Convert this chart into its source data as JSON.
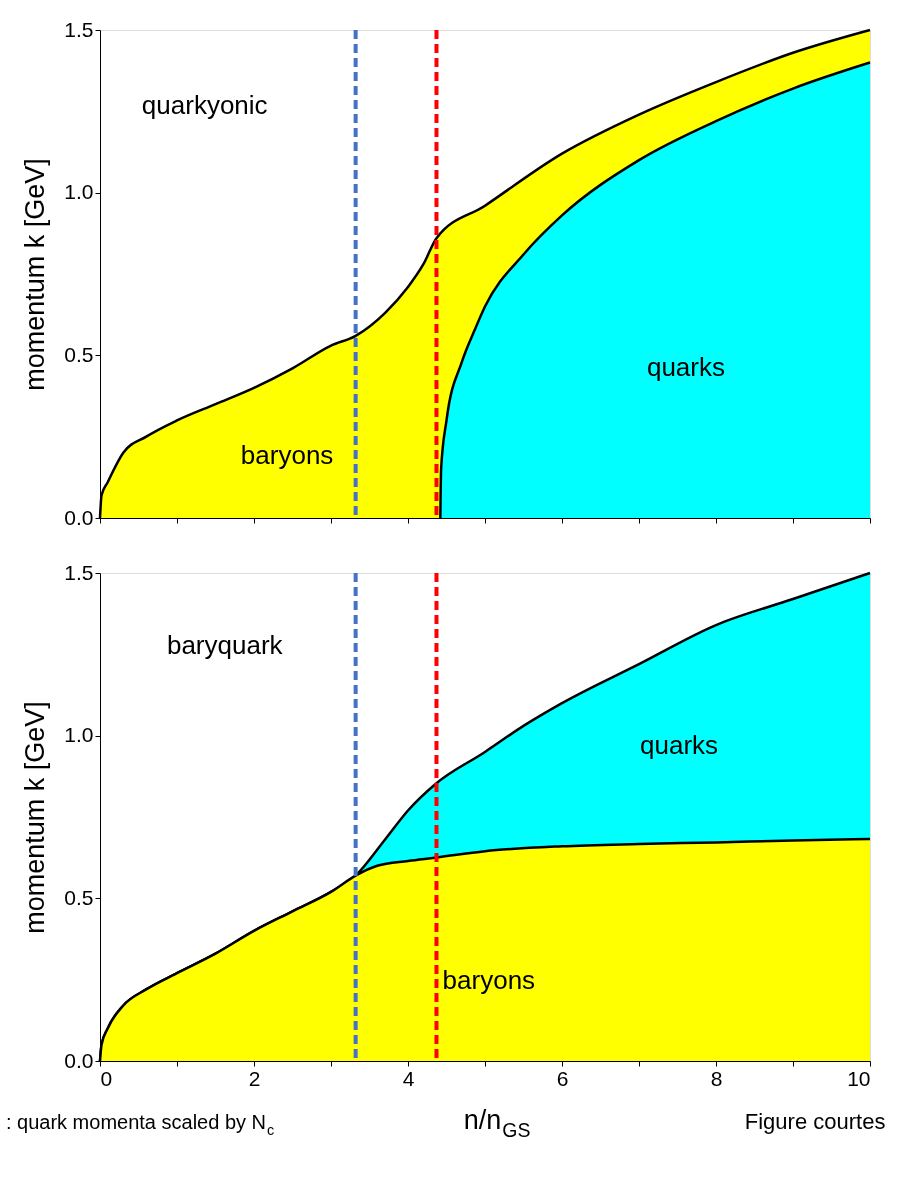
{
  "chart_data": [
    {
      "type": "area",
      "ylabel": "momentum k [GeV]",
      "xlim": [
        0,
        10
      ],
      "ylim": [
        0,
        1.5
      ],
      "xticks": [
        0,
        {
          "value": 1,
          "label": null
        },
        2,
        {
          "value": 3,
          "label": null
        },
        4,
        {
          "value": 5,
          "label": null
        },
        6,
        {
          "value": 7,
          "label": null
        },
        8,
        {
          "value": 9,
          "label": null
        },
        10
      ],
      "yticks": [
        {
          "value": 0,
          "label": "0.0"
        },
        {
          "value": 0.5,
          "label": "0.5"
        },
        {
          "value": 1,
          "label": "1.0"
        },
        {
          "value": 1.5,
          "label": "1.5"
        }
      ],
      "tick_labels": "y",
      "grid": false,
      "series": [
        {
          "color": "#ffff00",
          "x": [
            0,
            0.02,
            0.1,
            0.3,
            0.6,
            1,
            1.5,
            2,
            2.5,
            3,
            3.32,
            3.7,
            4,
            4.2,
            4.37,
            5,
            6,
            7,
            8,
            9,
            10
          ],
          "values": [
            0,
            0.07,
            0.11,
            0.2,
            0.25,
            0.3,
            0.35,
            0.4,
            0.46,
            0.53,
            0.56,
            0.63,
            0.71,
            0.78,
            0.86,
            0.96,
            1.12,
            1.24,
            1.34,
            1.43,
            1.5
          ]
        },
        {
          "color": "#00ffff",
          "x": [
            4.42,
            4.43,
            4.5,
            4.7,
            4.87,
            5,
            5.5,
            6,
            7,
            8,
            9,
            10
          ],
          "values": [
            0,
            0.15,
            0.3,
            0.48,
            0.58,
            0.65,
            0.81,
            0.93,
            1.1,
            1.22,
            1.32,
            1.4
          ]
        }
      ],
      "ref_lines": [
        {
          "axis": "x",
          "value": 3.32,
          "color": "#4472c4",
          "line_style": "dashed"
        },
        {
          "axis": "x",
          "value": 4.37,
          "color": "#ff0000",
          "line_style": "dashed"
        }
      ],
      "annotations": [
        "quarkyonic",
        "baryons",
        "quarks"
      ]
    },
    {
      "type": "area",
      "xlabel": "n/n$_{GS}$",
      "ylabel": "momentum k [GeV]",
      "xlim": [
        0,
        10
      ],
      "ylim": [
        0,
        1.5
      ],
      "xticks": [
        0,
        {
          "value": 1,
          "label": null
        },
        2,
        {
          "value": 3,
          "label": null
        },
        4,
        {
          "value": 5,
          "label": null
        },
        6,
        {
          "value": 7,
          "label": null
        },
        8,
        {
          "value": 9,
          "label": null
        },
        10
      ],
      "yticks": [
        {
          "value": 0,
          "label": "0.0"
        },
        {
          "value": 0.5,
          "label": "0.5"
        },
        {
          "value": 1,
          "label": "1.0"
        },
        {
          "value": 1.5,
          "label": "1.5"
        }
      ],
      "grid": false,
      "series": [
        {
          "color": "#00ffff",
          "x": [
            0,
            0.02,
            0.1,
            0.3,
            0.6,
            1,
            1.5,
            2,
            2.5,
            3,
            3.32,
            3.7,
            4,
            4.35,
            5,
            5.5,
            6,
            7,
            8,
            9,
            10
          ],
          "values": [
            0,
            0.05,
            0.1,
            0.17,
            0.22,
            0.27,
            0.33,
            0.4,
            0.46,
            0.52,
            0.57,
            0.68,
            0.77,
            0.85,
            0.95,
            1.03,
            1.1,
            1.22,
            1.34,
            1.42,
            1.5
          ]
        },
        {
          "color": "#ffff00",
          "x": [
            0,
            0.02,
            0.1,
            0.3,
            0.6,
            1,
            1.5,
            2,
            2.5,
            3,
            3.32,
            3.6,
            4,
            4.35,
            5,
            6,
            7,
            8,
            9,
            10
          ],
          "values": [
            0,
            0.05,
            0.1,
            0.17,
            0.22,
            0.27,
            0.33,
            0.4,
            0.46,
            0.52,
            0.57,
            0.6,
            0.615,
            0.625,
            0.645,
            0.66,
            0.667,
            0.672,
            0.678,
            0.682
          ]
        }
      ],
      "ref_lines": [
        {
          "axis": "x",
          "value": 3.32,
          "color": "#4472c4",
          "line_style": "dashed"
        },
        {
          "axis": "x",
          "value": 4.37,
          "color": "#ff0000",
          "line_style": "dashed"
        }
      ],
      "annotations": [
        "baryquark",
        "quarks",
        "baryons",
        ": quark momenta scaled by N$_{c}$",
        "Figure courtes"
      ]
    }
  ]
}
